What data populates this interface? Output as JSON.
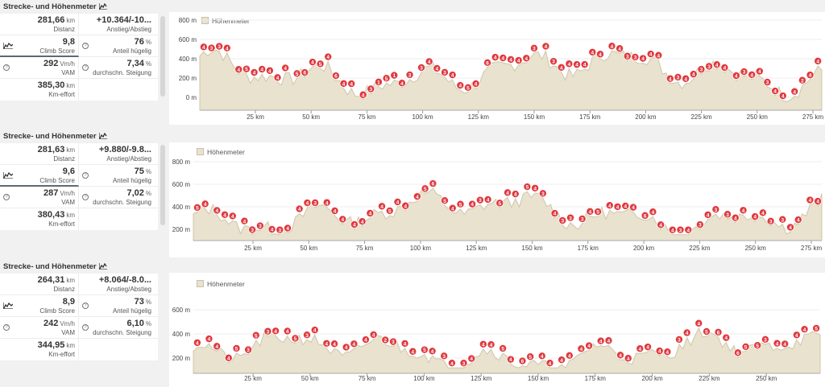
{
  "panels": [
    {
      "title": "Strecke- und Höhenmeter",
      "stats": [
        {
          "left": {
            "value": "281,66",
            "unit": "km",
            "label": "Distanz"
          },
          "right": {
            "value": "+10.364/-10...",
            "unit": "",
            "label": "Anstieg/Abstieg"
          }
        },
        {
          "left": {
            "value": "9,8",
            "unit": "",
            "label": "Climb Score"
          },
          "right": {
            "value": "76",
            "unit": "%",
            "label": "Anteil hügelig"
          }
        },
        {
          "left": {
            "value": "292",
            "unit": "Vm/h",
            "label": "VAM"
          },
          "right": {
            "value": "7,34",
            "unit": "%",
            "label": "durchschn. Steigung"
          }
        },
        {
          "left": {
            "value": "385,30",
            "unit": "km",
            "label": "Km-effort"
          },
          "right": {
            "value": "",
            "unit": "",
            "label": ""
          }
        }
      ],
      "chart": {
        "legend": "Höhenmeter",
        "y_ticks": [
          "800 m",
          "600 m",
          "400 m",
          "200 m",
          "0 m"
        ],
        "x_ticks": [
          "25 km",
          "50 km",
          "75 km",
          "100 km",
          "125 km",
          "150 km",
          "175 km",
          "200 km",
          "225 km",
          "250 km",
          "275 km"
        ],
        "markers": [
          "4",
          "3",
          "3",
          "4",
          "4",
          "5",
          "4",
          "4",
          "4",
          "4",
          "4",
          "5",
          "6",
          "4",
          "5",
          "4",
          "6",
          "4",
          "4",
          "4",
          "3",
          "1",
          "5",
          "1",
          "4",
          "3",
          "3",
          "4",
          "4",
          "3",
          "4",
          "4",
          "5",
          "4",
          "6",
          "4",
          "4",
          "4",
          "4",
          "4",
          "3",
          "4",
          "3",
          "4",
          "4",
          "4",
          "4",
          "4",
          "4",
          "4",
          "4",
          "3",
          "3",
          "4",
          "4",
          "4",
          "4",
          "3",
          "4",
          "4",
          "3",
          "3",
          "4",
          "4",
          "4",
          "3",
          "4",
          "4",
          "3",
          "4",
          "4",
          "4",
          "2",
          "4",
          "4"
        ]
      }
    },
    {
      "title": "Strecke- und Höhenmeter",
      "stats": [
        {
          "left": {
            "value": "281,63",
            "unit": "km",
            "label": "Distanz"
          },
          "right": {
            "value": "+9.880/-9.8...",
            "unit": "",
            "label": "Anstieg/Abstieg"
          }
        },
        {
          "left": {
            "value": "9,6",
            "unit": "",
            "label": "Climb Score"
          },
          "right": {
            "value": "75",
            "unit": "%",
            "label": "Anteil hügelig"
          }
        },
        {
          "left": {
            "value": "287",
            "unit": "Vm/h",
            "label": "VAM"
          },
          "right": {
            "value": "7,02",
            "unit": "%",
            "label": "durchschn. Steigung"
          }
        },
        {
          "left": {
            "value": "380,43",
            "unit": "km",
            "label": "Km-effort"
          },
          "right": {
            "value": "",
            "unit": "",
            "label": ""
          }
        }
      ],
      "chart": {
        "legend": "Höhenmeter",
        "y_ticks": [
          "800 m",
          "600 m",
          "400 m",
          "200 m"
        ],
        "x_ticks": [
          "25 km",
          "50 km",
          "75 km",
          "100 km",
          "125 km",
          "150 km",
          "175 km",
          "200 km",
          "225 km",
          "250 km",
          "275 km"
        ],
        "markers": [
          "5",
          "4",
          "4",
          "4",
          "4",
          "4",
          "3",
          "3",
          "4",
          "3",
          "4",
          "4",
          "4",
          "3",
          "4",
          "4",
          "4",
          "4",
          "4",
          "4",
          "4",
          "5",
          "4",
          "4",
          "4",
          "5",
          "6",
          "5",
          "4",
          "5",
          "4",
          "3",
          "4",
          "5",
          "4",
          "4",
          "5",
          "4",
          "3",
          "4",
          "3",
          "3",
          "3",
          "4",
          "5",
          "4",
          "4",
          "4",
          "4",
          "6",
          "4",
          "4",
          "4",
          "3",
          "4",
          "3",
          "4",
          "3",
          "3",
          "4",
          "4",
          "4",
          "4",
          "3",
          "3",
          "4",
          "4",
          "4",
          "4"
        ]
      }
    },
    {
      "title": "Strecke- und Höhenmeter",
      "stats": [
        {
          "left": {
            "value": "264,31",
            "unit": "km",
            "label": "Distanz"
          },
          "right": {
            "value": "+8.064/-8.0...",
            "unit": "",
            "label": "Anstieg/Abstieg"
          }
        },
        {
          "left": {
            "value": "8,9",
            "unit": "",
            "label": "Climb Score"
          },
          "right": {
            "value": "73",
            "unit": "%",
            "label": "Anteil hügelig"
          }
        },
        {
          "left": {
            "value": "242",
            "unit": "Vm/h",
            "label": "VAM"
          },
          "right": {
            "value": "6,10",
            "unit": "%",
            "label": "durchschn. Steigung"
          }
        },
        {
          "left": {
            "value": "344,95",
            "unit": "km",
            "label": "Km-effort"
          },
          "right": {
            "value": "",
            "unit": "",
            "label": ""
          }
        }
      ],
      "chart": {
        "legend": "Höhenmeter",
        "y_ticks": [
          "600 m",
          "400 m",
          "200 m"
        ],
        "x_ticks": [
          "25 km",
          "50 km",
          "75 km",
          "100 km",
          "125 km",
          "150 km",
          "175 km",
          "200 km",
          "225 km",
          "250 km"
        ],
        "markers": [
          "4",
          "4",
          "4",
          "4",
          "5",
          "3",
          "5",
          "3",
          "4",
          "4",
          "5",
          "3",
          "4",
          "4",
          "4",
          "4",
          "4",
          "4",
          "4",
          "2",
          "3",
          "4",
          "4",
          "5",
          "4",
          "3",
          "4",
          "3",
          "4",
          "4",
          "4",
          "5",
          "4",
          "6",
          "5",
          "4",
          "4",
          "4",
          "4",
          "4",
          "4",
          "4",
          "4",
          "4",
          "4",
          "4",
          "4",
          "4",
          "4",
          "3",
          "4",
          "4",
          "5",
          "6",
          "4",
          "6",
          "5",
          "5",
          "3",
          "4",
          "4",
          "4",
          "4",
          "5"
        ]
      }
    }
  ],
  "colors": {
    "marker": "#e0393e",
    "area_fill": "#e8e2ce",
    "area_stroke": "#cfc6ab",
    "grid": "#ececec"
  }
}
